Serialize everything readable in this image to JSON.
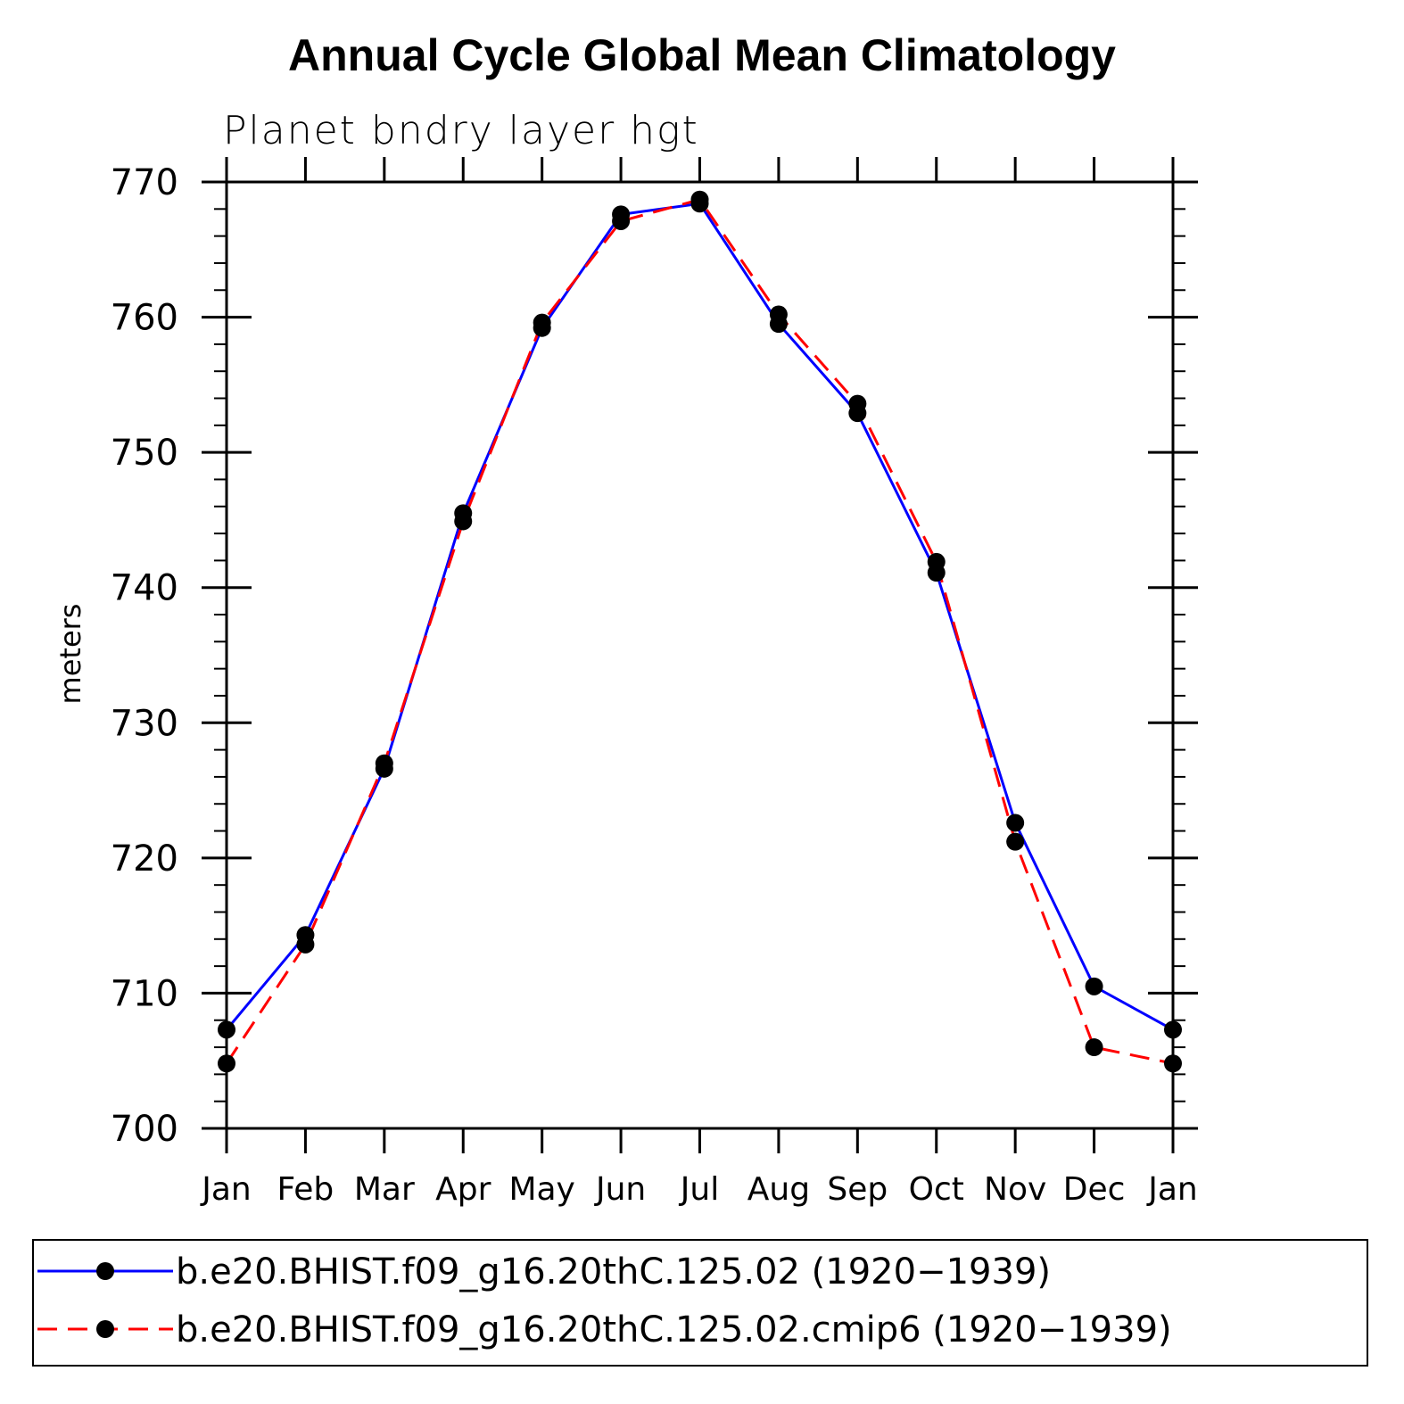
{
  "chart_data": {
    "type": "line",
    "title": "Annual Cycle Global Mean Climatology",
    "subtitle": "Planet bndry layer hgt",
    "ylabel": "meters",
    "xlabel": "",
    "categories": [
      "Jan",
      "Feb",
      "Mar",
      "Apr",
      "May",
      "Jun",
      "Jul",
      "Aug",
      "Sep",
      "Oct",
      "Nov",
      "Dec",
      "Jan"
    ],
    "ylim": [
      700,
      770
    ],
    "yticks": [
      "700",
      "710",
      "720",
      "730",
      "740",
      "750",
      "760",
      "770"
    ],
    "series": [
      {
        "name": "b.e20.BHIST.f09_g16.20thC.125.02 (1920−1939)",
        "color": "#0000ff",
        "dash": "solid",
        "values": [
          707.3,
          714.3,
          726.6,
          745.5,
          759.2,
          767.6,
          768.4,
          759.5,
          752.9,
          741.1,
          722.6,
          710.5,
          707.3
        ]
      },
      {
        "name": "b.e20.BHIST.f09_g16.20thC.125.02.cmip6 (1920−1939)",
        "color": "#ff0000",
        "dash": "dashed",
        "values": [
          704.8,
          713.6,
          727.0,
          744.9,
          759.6,
          767.1,
          768.7,
          760.2,
          753.6,
          741.9,
          721.2,
          706.0,
          704.8
        ]
      }
    ]
  }
}
